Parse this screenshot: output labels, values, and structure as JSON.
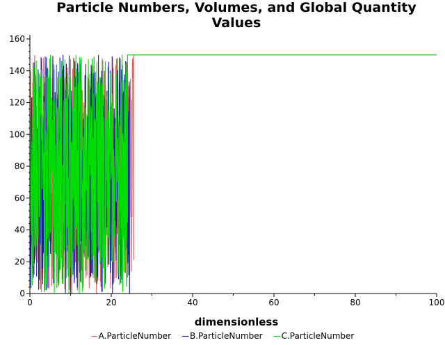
{
  "title_lines": [
    "Particle Numbers, Volumes, and Global Quantity",
    "Values"
  ],
  "chart_data": {
    "type": "line",
    "title": "Particle Numbers, Volumes, and Global Quantity Values",
    "xlabel": "dimensionless",
    "ylabel": "",
    "xlim": [
      0,
      100
    ],
    "ylim": [
      0,
      160
    ],
    "x_ticks": [
      0,
      20,
      40,
      60,
      80,
      100
    ],
    "y_ticks": [
      0,
      20,
      40,
      60,
      80,
      100,
      120,
      140,
      160
    ],
    "grid": false,
    "legend_position": "bottom",
    "description_of_shape": "dense stochastic oscillation between 0 and 150 for x in [0, ~25], then flat at 150 (and 0) until x=100",
    "series": [
      {
        "name": "A.ParticleNumber",
        "color": "#e06060",
        "x": [
          0,
          2,
          4,
          6,
          8,
          10,
          12,
          14,
          16,
          18,
          20,
          22,
          24,
          25.5,
          26,
          100
        ],
        "values": [
          40,
          150,
          10,
          140,
          5,
          150,
          20,
          150,
          0,
          150,
          5,
          150,
          150,
          150,
          150,
          150
        ]
      },
      {
        "name": "B.ParticleNumber",
        "color": "#1a1ab0",
        "x": [
          0,
          2,
          4,
          6,
          8,
          10,
          12,
          14,
          16,
          18,
          20,
          22,
          24,
          25,
          26,
          100
        ],
        "values": [
          60,
          0,
          140,
          5,
          150,
          10,
          145,
          0,
          150,
          5,
          140,
          0,
          0,
          0,
          0,
          0
        ]
      },
      {
        "name": "C.ParticleNumber",
        "color": "#00dd00",
        "x": [
          0,
          2,
          4,
          6,
          8,
          10,
          12,
          14,
          16,
          18,
          20,
          22,
          24,
          25,
          26,
          100
        ],
        "values": [
          50,
          150,
          0,
          150,
          0,
          150,
          0,
          150,
          0,
          150,
          0,
          150,
          0,
          150,
          150,
          150
        ]
      }
    ]
  }
}
